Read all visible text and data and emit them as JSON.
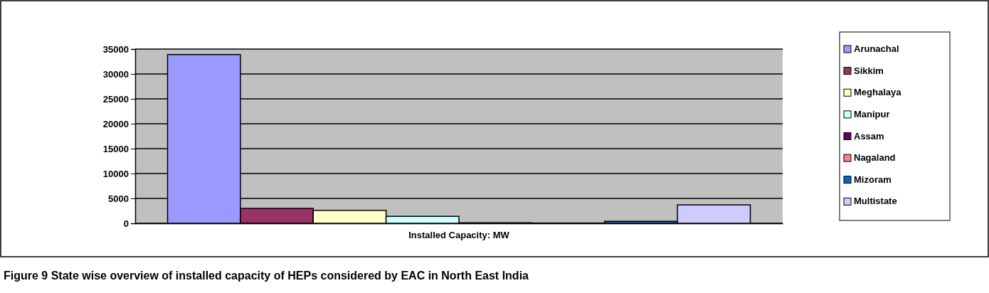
{
  "chart_data": {
    "type": "bar",
    "title": "Figure 9 State wise overview of installed capacity of HEPs considered by EAC in North East India",
    "categories": [
      "Installed Capacity: MW"
    ],
    "series": [
      {
        "name": "Arunachal",
        "color": "#9999ff",
        "values": [
          33900
        ]
      },
      {
        "name": "Sikkim",
        "color": "#993366",
        "values": [
          3000
        ]
      },
      {
        "name": "Meghalaya",
        "color": "#ffffcc",
        "values": [
          2600
        ]
      },
      {
        "name": "Manipur",
        "color": "#ccffff",
        "values": [
          1400
        ]
      },
      {
        "name": "Assam",
        "color": "#660066",
        "values": [
          100
        ]
      },
      {
        "name": "Nagaland",
        "color": "#ff8080",
        "values": [
          50
        ]
      },
      {
        "name": "Mizoram",
        "color": "#0066cc",
        "values": [
          400
        ]
      },
      {
        "name": "Multistate",
        "color": "#ccccff",
        "values": [
          3700
        ]
      }
    ],
    "ylim": [
      0,
      35000
    ],
    "yticks": [
      0,
      5000,
      10000,
      15000,
      20000,
      25000,
      30000,
      35000
    ],
    "grid": "y",
    "legend": "right"
  }
}
